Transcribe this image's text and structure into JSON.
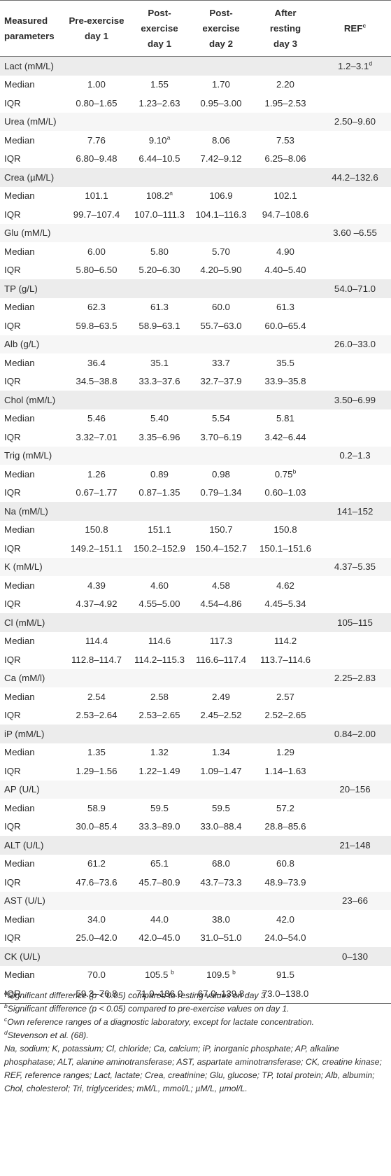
{
  "table": {
    "headers": [
      [
        "Measured",
        "parameters"
      ],
      [
        "Pre-exercise",
        "day 1"
      ],
      [
        "Post-",
        "exercise",
        "day 1"
      ],
      [
        "Post-",
        "exercise",
        "day 2"
      ],
      [
        "After",
        "resting",
        "day 3"
      ],
      [
        "REF",
        "c"
      ]
    ],
    "groups": [
      {
        "name": "Lact (mM/L)",
        "ref": "1.2–3.1",
        "ref_sup": "d",
        "median": [
          "1.00",
          "1.55",
          "1.70",
          "2.20"
        ],
        "median_sup": [
          "",
          "",
          "",
          ""
        ],
        "iqr": [
          "0.80–1.65",
          "1.23–2.63",
          "0.95–3.00",
          "1.95–2.53"
        ]
      },
      {
        "name": "Urea (mM/L)",
        "ref": "2.50–9.60",
        "ref_sup": "",
        "median": [
          "7.76",
          "9.10",
          "8.06",
          "7.53"
        ],
        "median_sup": [
          "",
          "a",
          "",
          ""
        ],
        "iqr": [
          "6.80–9.48",
          "6.44–10.5",
          "7.42–9.12",
          "6.25–8.06"
        ]
      },
      {
        "name": "Crea (µM/L)",
        "ref": "44.2–132.6",
        "ref_sup": "",
        "median": [
          "101.1",
          "108.2",
          "106.9",
          "102.1"
        ],
        "median_sup": [
          "",
          "a",
          "",
          ""
        ],
        "iqr": [
          "99.7–107.4",
          "107.0–111.3",
          "104.1–116.3",
          "94.7–108.6"
        ]
      },
      {
        "name": "Glu (mM/L)",
        "ref": "3.60 –6.55",
        "ref_sup": "",
        "median": [
          "6.00",
          "5.80",
          "5.70",
          "4.90"
        ],
        "median_sup": [
          "",
          "",
          "",
          ""
        ],
        "iqr": [
          "5.80–6.50",
          "5.20–6.30",
          "4.20–5.90",
          "4.40–5.40"
        ]
      },
      {
        "name": "TP (g/L)",
        "ref": "54.0–71.0",
        "ref_sup": "",
        "median": [
          "62.3",
          "61.3",
          "60.0",
          "61.3"
        ],
        "median_sup": [
          "",
          "",
          "",
          ""
        ],
        "iqr": [
          "59.8–63.5",
          "58.9–63.1",
          "55.7–63.0",
          "60.0–65.4"
        ]
      },
      {
        "name": "Alb (g/L)",
        "ref": "26.0–33.0",
        "ref_sup": "",
        "median": [
          "36.4",
          "35.1",
          "33.7",
          "35.5"
        ],
        "median_sup": [
          "",
          "",
          "",
          ""
        ],
        "iqr": [
          "34.5–38.8",
          "33.3–37.6",
          "32.7–37.9",
          "33.9–35.8"
        ]
      },
      {
        "name": "Chol (mM/L)",
        "ref": "3.50–6.99",
        "ref_sup": "",
        "median": [
          "5.46",
          "5.40",
          "5.54",
          "5.81"
        ],
        "median_sup": [
          "",
          "",
          "",
          ""
        ],
        "iqr": [
          "3.32–7.01",
          "3.35–6.96",
          "3.70–6.19",
          "3.42–6.44"
        ]
      },
      {
        "name": "Trig (mM/L)",
        "ref": "0.2–1.3",
        "ref_sup": "",
        "median": [
          "1.26",
          "0.89",
          "0.98",
          "0.75"
        ],
        "median_sup": [
          "",
          "",
          "",
          "b"
        ],
        "iqr": [
          "0.67–1.77",
          "0.87–1.35",
          "0.79–1.34",
          "0.60–1.03"
        ]
      },
      {
        "name": "Na (mM/L)",
        "ref": "141–152",
        "ref_sup": "",
        "median": [
          "150.8",
          "151.1",
          "150.7",
          "150.8"
        ],
        "median_sup": [
          "",
          "",
          "",
          ""
        ],
        "iqr": [
          "149.2–151.1",
          "150.2–152.9",
          "150.4–152.7",
          "150.1–151.6"
        ]
      },
      {
        "name": "K (mM/L)",
        "ref": "4.37–5.35",
        "ref_sup": "",
        "median": [
          "4.39",
          "4.60",
          "4.58",
          "4.62"
        ],
        "median_sup": [
          "",
          "",
          "",
          ""
        ],
        "iqr": [
          "4.37–4.92",
          "4.55–5.00",
          "4.54–4.86",
          "4.45–5.34"
        ]
      },
      {
        "name": "Cl (mM/L)",
        "ref": "105–115",
        "ref_sup": "",
        "median": [
          "114.4",
          "114.6",
          "117.3",
          "114.2"
        ],
        "median_sup": [
          "",
          "",
          "",
          ""
        ],
        "iqr": [
          "112.8–114.7",
          "114.2–115.3",
          "116.6–117.4",
          "113.7–114.6"
        ]
      },
      {
        "name": "Ca (mM/l)",
        "ref": "2.25–2.83",
        "ref_sup": "",
        "median": [
          "2.54",
          "2.58",
          "2.49",
          "2.57"
        ],
        "median_sup": [
          "",
          "",
          "",
          ""
        ],
        "iqr": [
          "2.53–2.64",
          "2.53–2.65",
          "2.45–2.52",
          "2.52–2.65"
        ]
      },
      {
        "name": "iP (mM/L)",
        "ref": "0.84–2.00",
        "ref_sup": "",
        "median": [
          "1.35",
          "1.32",
          "1.34",
          "1.29"
        ],
        "median_sup": [
          "",
          "",
          "",
          ""
        ],
        "iqr": [
          "1.29–1.56",
          "1.22–1.49",
          "1.09–1.47",
          "1.14–1.63"
        ]
      },
      {
        "name": "AP (U/L)",
        "ref": "20–156",
        "ref_sup": "",
        "median": [
          "58.9",
          "59.5",
          "59.5",
          "57.2"
        ],
        "median_sup": [
          "",
          "",
          "",
          ""
        ],
        "iqr": [
          "30.0–85.4",
          "33.3–89.0",
          "33.0–88.4",
          "28.8–85.6"
        ]
      },
      {
        "name": "ALT (U/L)",
        "ref": "21–148",
        "ref_sup": "",
        "median": [
          "61.2",
          "65.1",
          "68.0",
          "60.8"
        ],
        "median_sup": [
          "",
          "",
          "",
          ""
        ],
        "iqr": [
          "47.6–73.6",
          "45.7–80.9",
          "43.7–73.3",
          "48.9–73.9"
        ]
      },
      {
        "name": "AST (U/L)",
        "ref": "23–66",
        "ref_sup": "",
        "median": [
          "34.0",
          "44.0",
          "38.0",
          "42.0"
        ],
        "median_sup": [
          "",
          "",
          "",
          ""
        ],
        "iqr": [
          "25.0–42.0",
          "42.0–45.0",
          "31.0–51.0",
          "24.0–54.0"
        ]
      },
      {
        "name": "CK (U/L)",
        "ref": "0–130",
        "ref_sup": "",
        "median": [
          "70.0",
          "105.5 ",
          "109.5 ",
          "91.5"
        ],
        "median_sup": [
          "",
          "b",
          "b",
          ""
        ],
        "iqr": [
          "59.3–76.8",
          "71.0–136.0",
          "67.0–139.8",
          "73.0–138.0"
        ]
      }
    ],
    "row_labels": {
      "median": "Median",
      "iqr": "IQR"
    }
  },
  "footnotes": [
    {
      "mark": "a",
      "text": "Significant difference (p < 0.05) compared to resting values on day 3."
    },
    {
      "mark": "b",
      "text": "Significant difference (p < 0.05) compared to pre-exercise values on day 1."
    },
    {
      "mark": "c",
      "text": "Own reference ranges of a diagnostic laboratory, except for lactate concentration."
    },
    {
      "mark": "d",
      "text": "Stevenson et al. (68)."
    }
  ],
  "abbreviations": "Na, sodium; K, potassium; Cl, chloride; Ca, calcium; iP, inorganic phosphate; AP, alkaline phosphatase; ALT, alanine aminotransferase; AST, aspartate aminotransferase; CK, creatine kinase; REF, reference ranges; Lact, lactate; Crea, creatinine; Glu, glucose; TP, total protein; Alb, albumin; Chol, cholesterol; Tri, triglycerides; mM/L, mmol/L; µM/L, µmol/L.",
  "colors": {
    "row_shade": "#ececec",
    "row_shade_light": "#f6f6f6",
    "rule": "#6f6f6f",
    "text": "#2b2b2b"
  }
}
